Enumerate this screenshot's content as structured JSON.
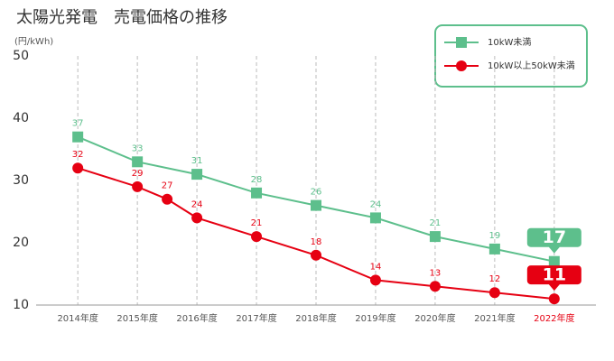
{
  "chart_data": {
    "type": "line",
    "title": "太陽光発電　売電価格の推移",
    "y_label": "(円/kWh)",
    "xlim": [
      2013.3,
      2022.7
    ],
    "xticks": [
      {
        "value": 2014,
        "label": "2014年度"
      },
      {
        "value": 2015,
        "label": "2015年度"
      },
      {
        "value": 2016,
        "label": "2016年度"
      },
      {
        "value": 2017,
        "label": "2017年度"
      },
      {
        "value": 2018,
        "label": "2018年度"
      },
      {
        "value": 2019,
        "label": "2019年度"
      },
      {
        "value": 2020,
        "label": "2020年度"
      },
      {
        "value": 2021,
        "label": "2021年度"
      },
      {
        "value": 2022,
        "label": "2022年度"
      }
    ],
    "ylim": [
      10,
      50
    ],
    "yticks": [
      10,
      20,
      30,
      40,
      50
    ],
    "highlight_x": 2022,
    "legend_position": "upper right",
    "series": [
      {
        "name": "10kW未満",
        "color": "#5dbf8c",
        "marker": "square",
        "x": [
          2014,
          2015,
          2016,
          2017,
          2018,
          2019,
          2020,
          2021,
          2022
        ],
        "values": [
          37,
          33,
          31,
          28,
          26,
          24,
          21,
          19,
          17
        ]
      },
      {
        "name": "10kW以上50kW未満",
        "color": "#e60012",
        "marker": "circle",
        "x": [
          2014,
          2015,
          2015.5,
          2016,
          2017,
          2018,
          2019,
          2020,
          2021,
          2022
        ],
        "values": [
          32,
          29,
          27,
          24,
          21,
          18,
          14,
          13,
          12,
          11
        ]
      }
    ]
  }
}
